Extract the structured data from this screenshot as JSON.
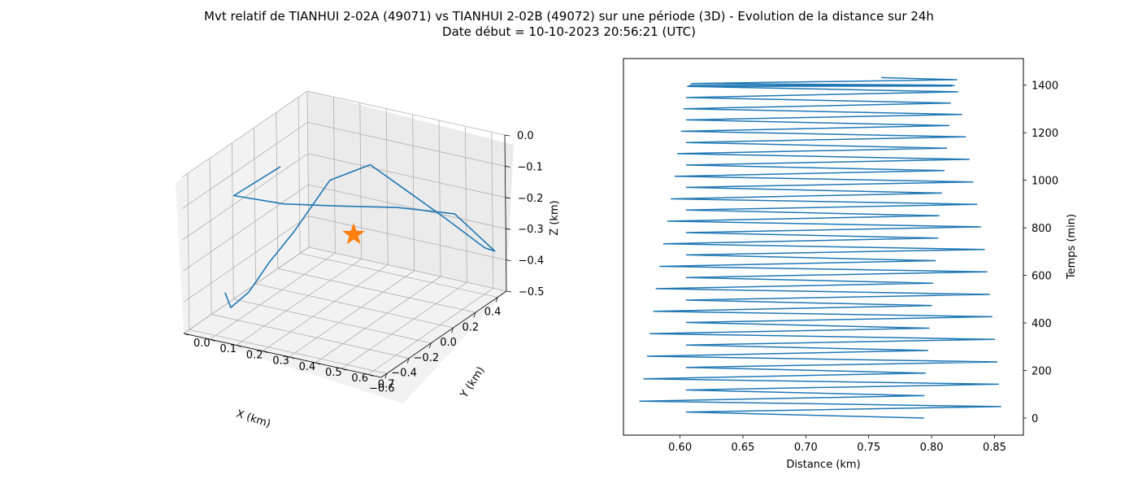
{
  "title_line1": "Mvt relatif de TIANHUI 2-02A (49071) vs TIANHUI 2-02B (49072) sur une période (3D) - Evolution de la distance sur 24h",
  "title_line2": "Date début = 10-10-2023 20:56:21 (UTC)",
  "chart_data": [
    {
      "type": "line3d",
      "xlabel": "X (km)",
      "ylabel": "Y (km)",
      "zlabel": "Z (km)",
      "xlim": [
        -0.65,
        0.48
      ],
      "ylim": [
        0.0,
        0.75
      ],
      "zlim": [
        -0.5,
        0.0
      ],
      "x_ticks": [
        -0.6,
        -0.4,
        -0.2,
        0.0,
        0.2,
        0.4
      ],
      "y_ticks": [
        0.0,
        0.1,
        0.2,
        0.3,
        0.4,
        0.5,
        0.6,
        0.7
      ],
      "z_ticks": [
        0.0,
        -0.1,
        -0.2,
        -0.3,
        -0.4,
        -0.5
      ],
      "x_tick_labels": [
        "−0.6",
        "−0.4",
        "−0.2",
        "0.0",
        "0.2",
        "0.4"
      ],
      "y_tick_labels": [
        "0.0",
        "0.1",
        "0.2",
        "0.3",
        "0.4",
        "0.5",
        "0.6",
        "0.7"
      ],
      "z_tick_labels": [
        "0.0",
        "−0.1",
        "−0.2",
        "−0.3",
        "−0.4",
        "−0.5"
      ],
      "grid": true,
      "series_color": "#1f77b4",
      "marker_color": "#ff7f0e",
      "marker": "star",
      "marker_point": {
        "x": -0.13,
        "y": 0.43,
        "z": -0.23
      },
      "orbit": {
        "x": [
          -0.05,
          -0.47,
          -0.35,
          -0.18,
          0.05,
          0.33,
          0.45,
          0.43,
          0.36,
          0.32,
          0.26,
          0.11,
          -0.06,
          -0.16,
          -0.25,
          -0.32,
          -0.37
        ],
        "y": [
          0.12,
          0.12,
          0.26,
          0.41,
          0.52,
          0.62,
          0.72,
          0.69,
          0.57,
          0.45,
          0.33,
          0.24,
          0.17,
          0.12,
          0.08,
          0.04,
          0.04
        ],
        "z": [
          -0.09,
          -0.08,
          -0.11,
          -0.13,
          -0.17,
          -0.24,
          -0.37,
          -0.36,
          -0.27,
          -0.2,
          -0.12,
          -0.15,
          -0.29,
          -0.37,
          -0.45,
          -0.49,
          -0.43
        ]
      }
    },
    {
      "type": "line",
      "xlabel": "Distance (km)",
      "ylabel": "Temps (min)",
      "xlim": [
        0.555,
        0.873
      ],
      "ylim": [
        -72,
        1512
      ],
      "x_ticks": [
        0.6,
        0.65,
        0.7,
        0.75,
        0.8,
        0.85
      ],
      "x_tick_labels": [
        "0.60",
        "0.65",
        "0.70",
        "0.75",
        "0.80",
        "0.85"
      ],
      "y_ticks": [
        0,
        200,
        400,
        600,
        800,
        1000,
        1200,
        1400
      ],
      "y_tick_labels": [
        "0",
        "200",
        "400",
        "600",
        "800",
        "1000",
        "1200",
        "1400"
      ],
      "y_axis_side": "right",
      "grid": false,
      "series_color": "#1f77b4",
      "series": [
        {
          "x": [
            0.794,
            0.605,
            0.855,
            0.568,
            0.794,
            0.605,
            0.853,
            0.571,
            0.795,
            0.605,
            0.852,
            0.574,
            0.797,
            0.605,
            0.85,
            0.576,
            0.798,
            0.605,
            0.848,
            0.579,
            0.8,
            0.605,
            0.846,
            0.581,
            0.801,
            0.605,
            0.844,
            0.584,
            0.803,
            0.605,
            0.842,
            0.587,
            0.805,
            0.605,
            0.839,
            0.59,
            0.806,
            0.605,
            0.836,
            0.593,
            0.808,
            0.605,
            0.833,
            0.596,
            0.81,
            0.605,
            0.83,
            0.598,
            0.812,
            0.605,
            0.827,
            0.601,
            0.814,
            0.605,
            0.824,
            0.603,
            0.815,
            0.605,
            0.821,
            0.606,
            0.816,
            0.607,
            0.818,
            0.608,
            0.816,
            0.609,
            0.82,
            0.76
          ],
          "y": [
            0,
            25,
            48,
            71,
            94,
            118,
            142,
            165,
            189,
            213,
            236,
            260,
            284,
            307,
            331,
            355,
            378,
            402,
            426,
            449,
            473,
            496,
            520,
            544,
            567,
            591,
            615,
            638,
            662,
            686,
            709,
            733,
            757,
            780,
            804,
            828,
            851,
            875,
            899,
            922,
            946,
            970,
            993,
            1017,
            1041,
            1064,
            1088,
            1112,
            1135,
            1159,
            1183,
            1206,
            1230,
            1254,
            1277,
            1301,
            1325,
            1348,
            1372,
            1395,
            1396,
            1397,
            1398,
            1399,
            1400,
            1407,
            1423,
            1432
          ]
        }
      ]
    }
  ]
}
